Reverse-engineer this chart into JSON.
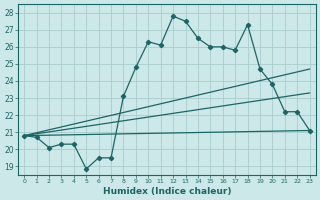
{
  "xlabel": "Humidex (Indice chaleur)",
  "ylabel": "",
  "xlim": [
    -0.5,
    23.5
  ],
  "ylim": [
    18.5,
    28.5
  ],
  "xticks": [
    0,
    1,
    2,
    3,
    4,
    5,
    6,
    7,
    8,
    9,
    10,
    11,
    12,
    13,
    14,
    15,
    16,
    17,
    18,
    19,
    20,
    21,
    22,
    23
  ],
  "yticks": [
    19,
    20,
    21,
    22,
    23,
    24,
    25,
    26,
    27,
    28
  ],
  "background_color": "#cce8e8",
  "grid_color": "#aacccc",
  "line_color": "#1a6666",
  "line1_x": [
    0,
    1,
    2,
    3,
    4,
    5,
    6,
    7,
    8,
    9,
    10,
    11,
    12,
    13,
    14,
    15,
    16,
    17,
    18,
    19,
    20,
    21,
    22,
    23
  ],
  "line1_y": [
    20.8,
    20.7,
    20.1,
    20.3,
    20.3,
    18.85,
    19.5,
    19.5,
    23.1,
    24.8,
    26.3,
    26.1,
    27.8,
    27.5,
    26.5,
    26.0,
    26.0,
    25.8,
    27.3,
    24.7,
    23.8,
    22.2,
    22.2,
    21.1
  ],
  "line2_x": [
    0,
    23
  ],
  "line2_y": [
    20.8,
    21.1
  ],
  "line3_x": [
    0,
    23
  ],
  "line3_y": [
    20.8,
    23.3
  ],
  "line4_x": [
    0,
    23
  ],
  "line4_y": [
    20.8,
    24.7
  ]
}
